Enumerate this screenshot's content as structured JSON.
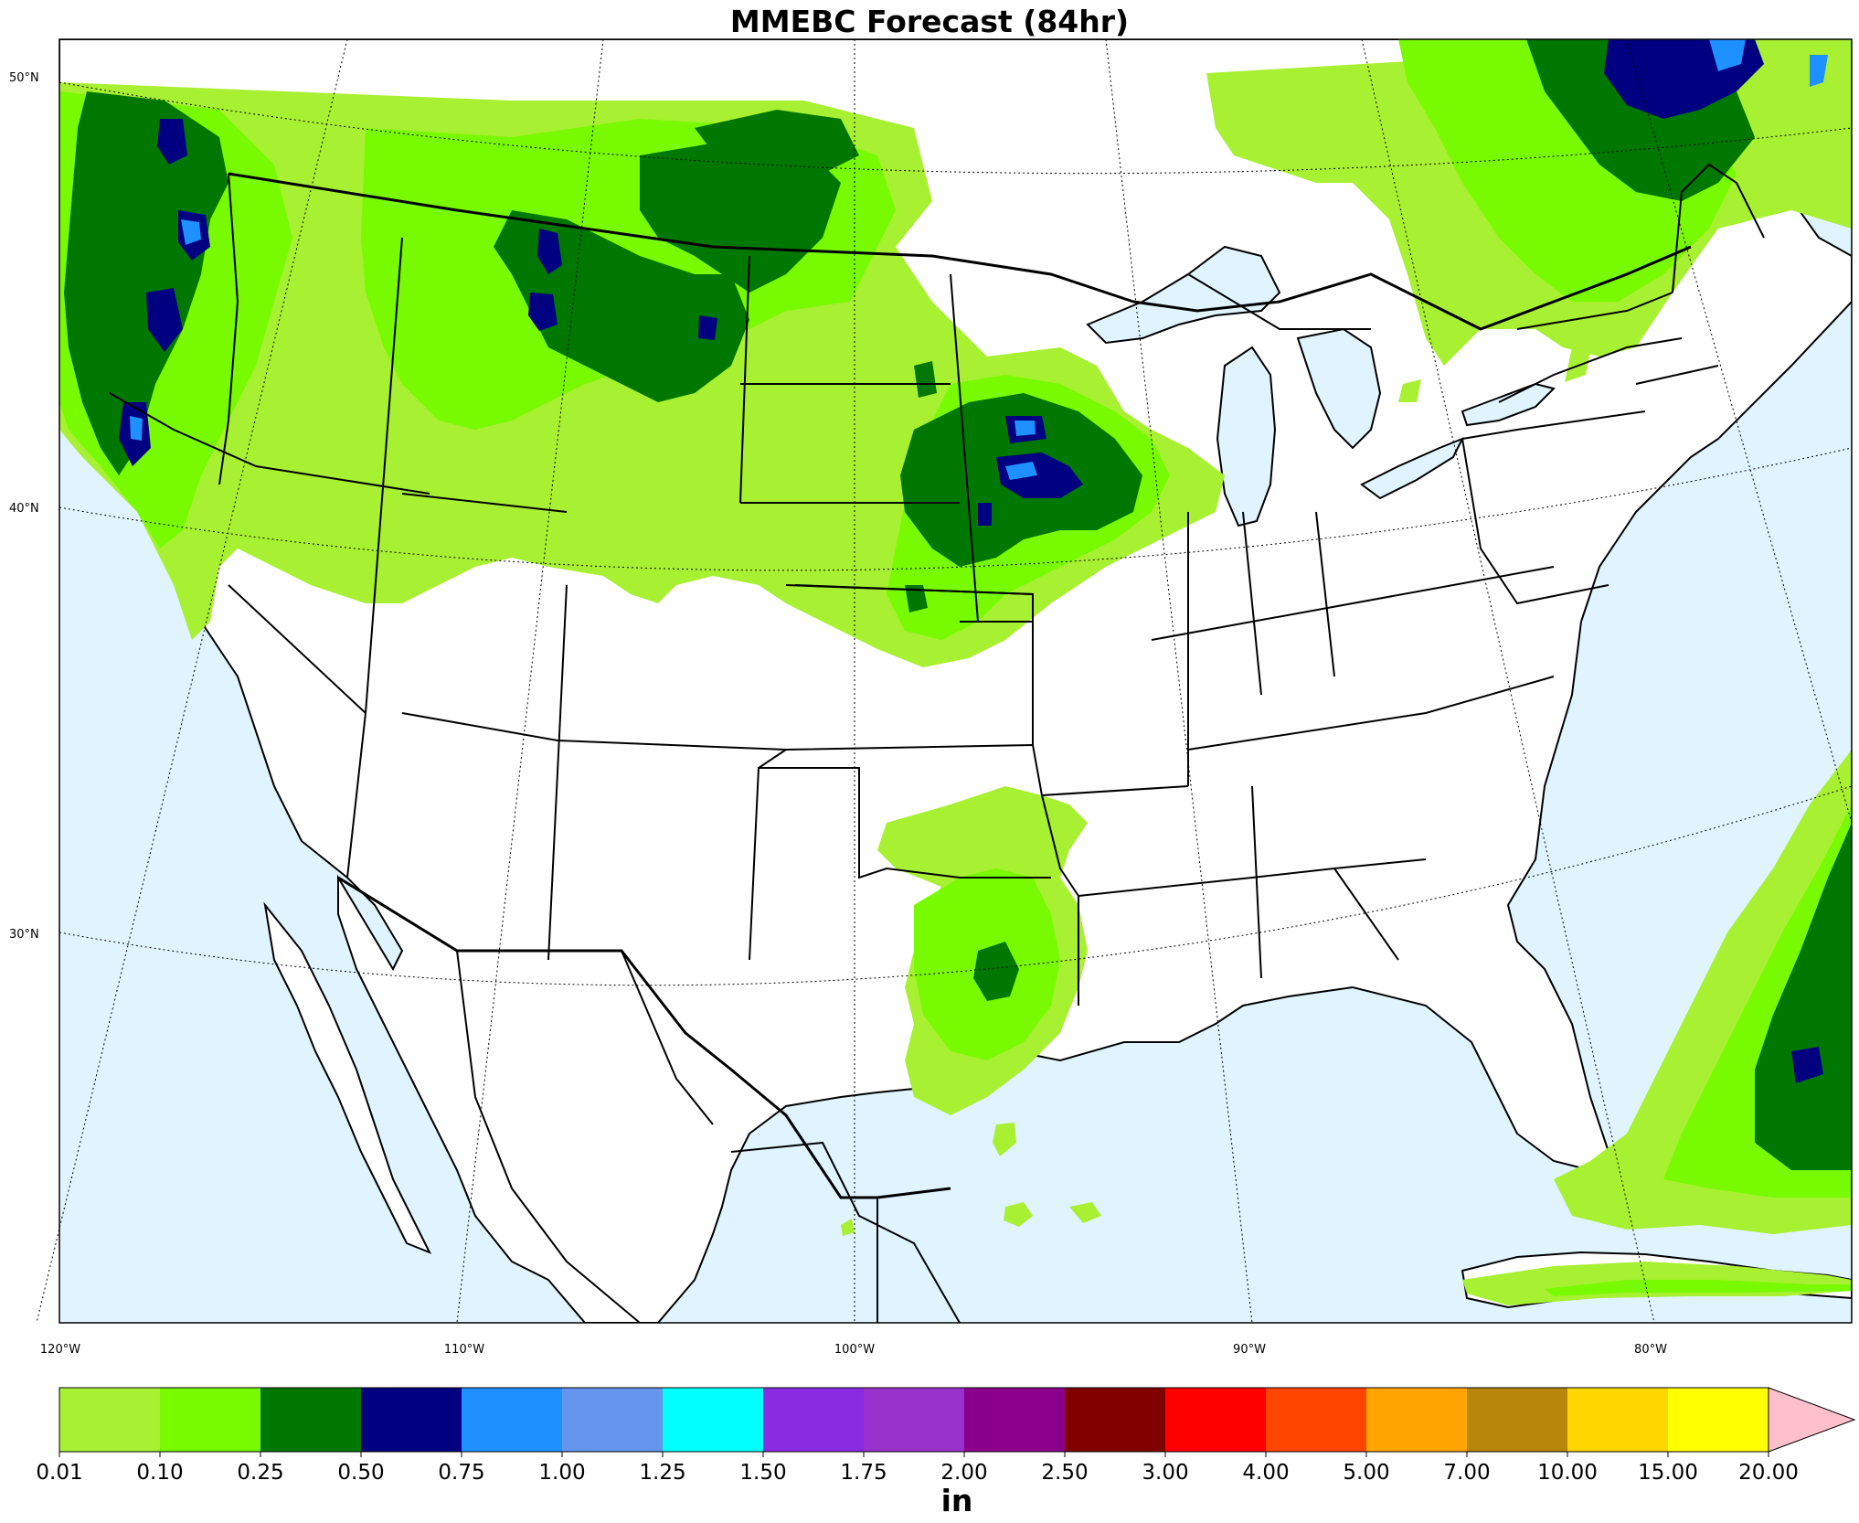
{
  "title": "MMEBC Forecast (84hr)",
  "colors": {
    "ocean": "#dff4ff",
    "land": "#ffffff",
    "border": "#000000",
    "over_arrow": "#ffc0cb"
  },
  "lat_labels": [
    "50°N",
    "40°N",
    "30°N"
  ],
  "lon_labels": [
    "120°W",
    "110°W",
    "100°W",
    "90°W",
    "80°W"
  ],
  "colorbar": {
    "units": "in",
    "ticks": [
      "0.01",
      "0.10",
      "0.25",
      "0.50",
      "0.75",
      "1.00",
      "1.25",
      "1.50",
      "1.75",
      "2.00",
      "2.50",
      "3.00",
      "4.00",
      "5.00",
      "7.00",
      "10.00",
      "15.00",
      "20.00"
    ],
    "colors": [
      "#a8f032",
      "#78fa00",
      "#007800",
      "#000080",
      "#1e90ff",
      "#6495ed",
      "#00ffff",
      "#8a2be2",
      "#9932cc",
      "#8b008b",
      "#800000",
      "#ff0000",
      "#ff4500",
      "#ffa500",
      "#b8860b",
      "#ffd700",
      "#ffff00"
    ]
  }
}
